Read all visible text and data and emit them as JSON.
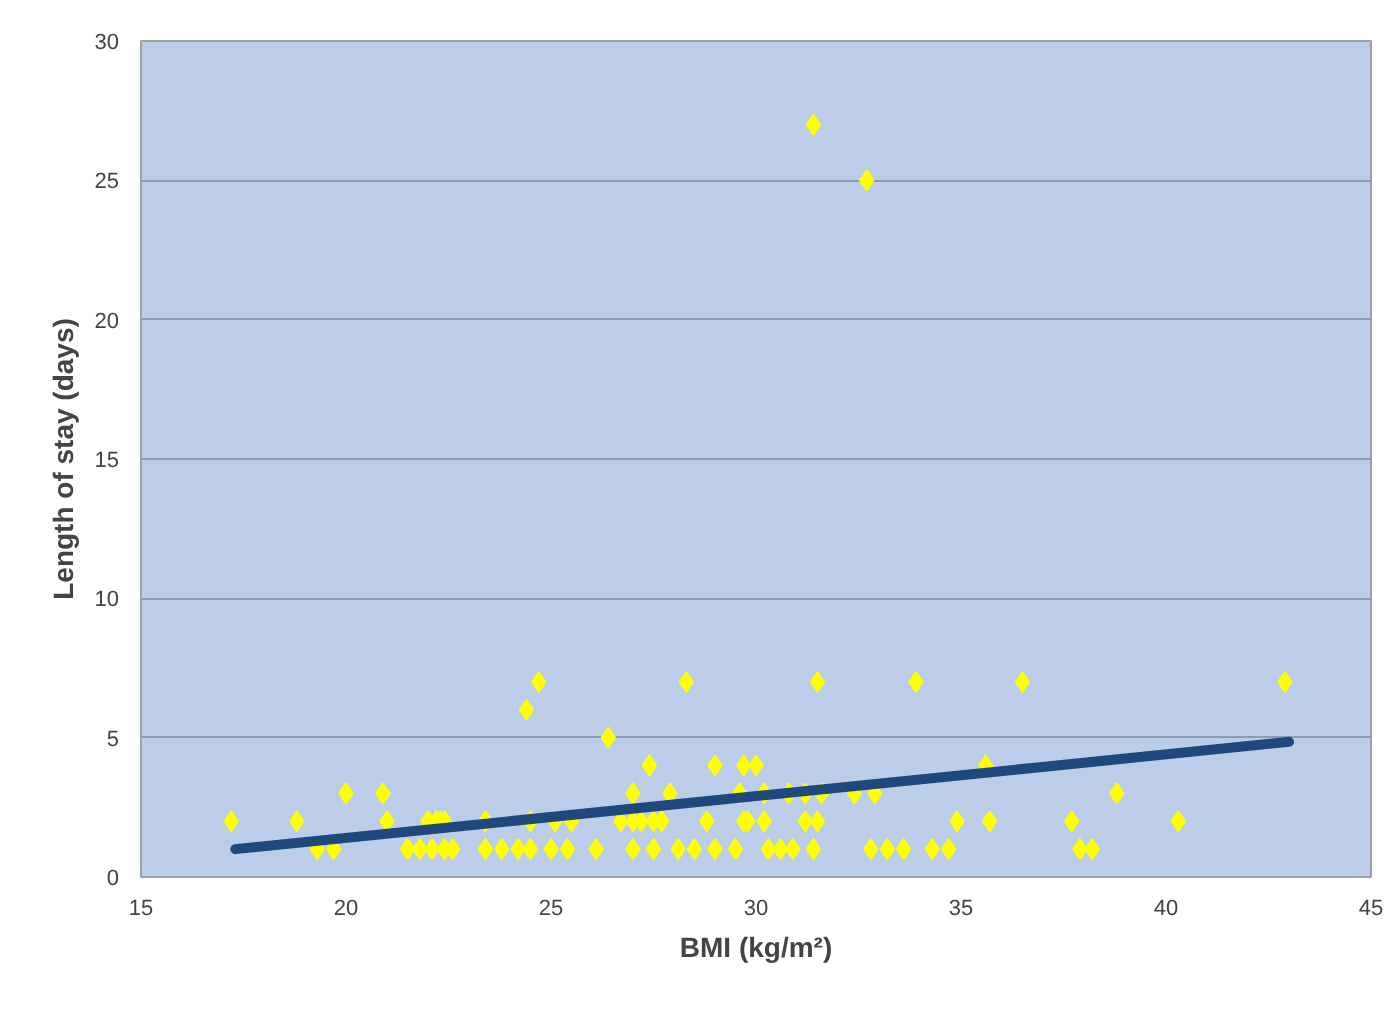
{
  "chart_data": {
    "type": "scatter",
    "xlabel": "BMI (kg/m²)",
    "ylabel": "Length of stay (days)",
    "xlim": [
      15,
      45
    ],
    "ylim": [
      0,
      30
    ],
    "xticks": [
      15,
      20,
      25,
      30,
      35,
      40,
      45
    ],
    "yticks": [
      0,
      5,
      10,
      15,
      20,
      25,
      30
    ],
    "grid": "y",
    "series": [
      {
        "marker": "diamond",
        "color": "#ffff00",
        "x": [
          17.2,
          18.8,
          21.0,
          22.0,
          22.2,
          22.3,
          22.4,
          23.4,
          24.5,
          25.1,
          25.5,
          26.7,
          27.0,
          27.2,
          27.5,
          27.7,
          28.8,
          29.7,
          19.3,
          19.7,
          21.5,
          21.8,
          22.1,
          22.4,
          22.6,
          23.4,
          23.8,
          24.2,
          24.5,
          25.0,
          25.4,
          26.1,
          27.0,
          27.5,
          28.1,
          28.5,
          29.0,
          29.5,
          20.0,
          20.9,
          27.0,
          27.9,
          29.6,
          27.4,
          29.0,
          29.7,
          26.4,
          24.4,
          24.7,
          28.3,
          31.5,
          33.9,
          36.5,
          42.9,
          30.0,
          35.6,
          30.2,
          30.8,
          31.2,
          31.6,
          32.4,
          32.9,
          38.8,
          29.8,
          30.2,
          31.2,
          31.5,
          34.9,
          35.7,
          37.7,
          40.3,
          30.3,
          30.6,
          30.9,
          31.4,
          32.8,
          33.2,
          33.6,
          34.3,
          34.7,
          37.9,
          38.2,
          31.4,
          32.7
        ],
        "values": [
          2,
          2,
          2,
          2,
          2,
          2,
          2,
          2,
          2,
          2,
          2,
          2,
          2,
          2,
          2,
          2,
          2,
          2,
          1,
          1,
          1,
          1,
          1,
          1,
          1,
          1,
          1,
          1,
          1,
          1,
          1,
          1,
          1,
          1,
          1,
          1,
          1,
          1,
          3,
          3,
          3,
          3,
          3,
          4,
          4,
          4,
          5,
          6,
          7,
          7,
          7,
          7,
          7,
          7,
          4,
          4,
          3,
          3,
          3,
          3,
          3,
          3,
          3,
          2,
          2,
          2,
          2,
          2,
          2,
          2,
          2,
          1,
          1,
          1,
          1,
          1,
          1,
          1,
          1,
          1,
          1,
          1,
          27,
          25
        ]
      },
      {
        "type": "line",
        "marker": "none",
        "color": "#1f497d",
        "x": [
          17.3,
          43.0
        ],
        "values": [
          1.0,
          4.85
        ]
      }
    ]
  }
}
